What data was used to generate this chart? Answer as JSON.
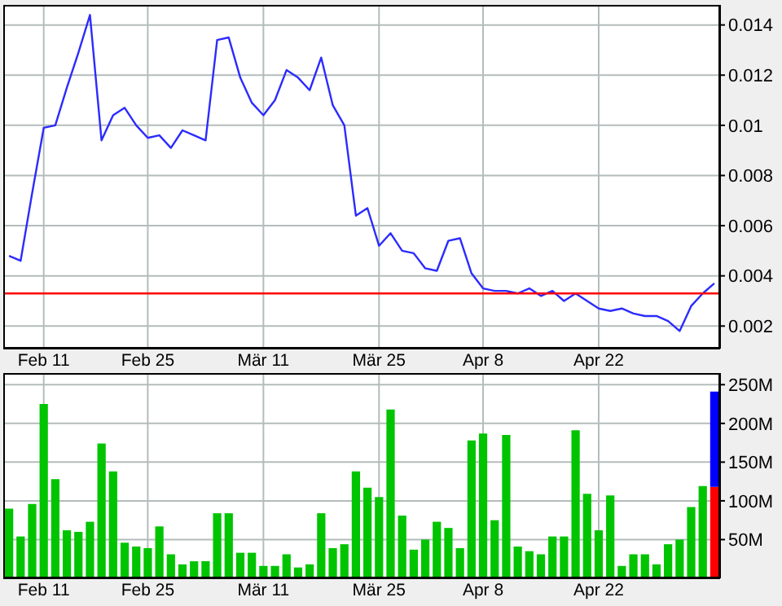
{
  "chart_data": [
    {
      "type": "line",
      "categories": [
        null,
        null,
        null,
        "Feb 11",
        null,
        null,
        null,
        null,
        null,
        null,
        null,
        null,
        "Feb 25",
        null,
        null,
        null,
        null,
        null,
        null,
        null,
        null,
        null,
        "Mär 11",
        null,
        null,
        null,
        null,
        null,
        null,
        null,
        null,
        null,
        "Mär 25",
        null,
        null,
        null,
        null,
        null,
        null,
        null,
        null,
        "Apr 8",
        null,
        null,
        null,
        null,
        null,
        null,
        null,
        null,
        null,
        "Apr 22",
        null,
        null,
        null,
        null,
        null,
        null,
        null,
        null,
        null,
        null
      ],
      "series": [
        {
          "color": "#2b2bff",
          "values": [
            0.0048,
            0.0046,
            0.0073,
            0.0099,
            0.01,
            0.0115,
            0.0129,
            0.0144,
            0.0094,
            0.0104,
            0.0107,
            0.01,
            0.0095,
            0.0096,
            0.0091,
            0.0098,
            0.0096,
            0.0094,
            0.0134,
            0.0135,
            0.0119,
            0.0109,
            0.0104,
            0.011,
            0.0122,
            0.0119,
            0.0114,
            0.0127,
            0.0108,
            0.01,
            0.0064,
            0.0067,
            0.0052,
            0.0057,
            0.005,
            0.0049,
            0.0043,
            0.0042,
            0.0054,
            0.0055,
            0.0041,
            0.0035,
            0.0034,
            0.0034,
            0.0033,
            0.0035,
            0.0032,
            0.0034,
            0.003,
            0.0033,
            0.003,
            0.0027,
            0.0026,
            0.0027,
            0.0025,
            0.0024,
            0.0024,
            0.0022,
            0.0018,
            0.0028,
            0.0033,
            0.0037
          ]
        }
      ],
      "ylim": [
        0.0011,
        0.0148
      ],
      "yticks": [
        0.002,
        0.004,
        0.006,
        0.008,
        0.01,
        0.012,
        0.014
      ],
      "grid": true,
      "marker": "none",
      "line_style": "solid",
      "ref_lines": [
        {
          "axis": "y",
          "value": 0.0033,
          "color": "#ff0000"
        }
      ]
    },
    {
      "type": "bar",
      "categories": [
        null,
        null,
        null,
        "Feb 11",
        null,
        null,
        null,
        null,
        null,
        null,
        null,
        null,
        "Feb 25",
        null,
        null,
        null,
        null,
        null,
        null,
        null,
        null,
        null,
        "Mär 11",
        null,
        null,
        null,
        null,
        null,
        null,
        null,
        null,
        null,
        "Mär 25",
        null,
        null,
        null,
        null,
        null,
        null,
        null,
        null,
        "Apr 8",
        null,
        null,
        null,
        null,
        null,
        null,
        null,
        null,
        null,
        "Apr 22",
        null,
        null,
        null,
        null,
        null,
        null,
        null,
        null,
        null,
        null
      ],
      "stacked": true,
      "series": [
        {
          "color": "#00c400",
          "values": [
            90,
            54,
            96,
            225,
            128,
            62,
            60,
            73,
            174,
            138,
            46,
            41,
            39,
            67,
            31,
            18,
            22,
            22,
            84,
            84,
            33,
            33,
            16,
            16,
            31,
            14,
            18,
            84,
            39,
            44,
            138,
            117,
            105,
            218,
            81,
            37,
            50,
            73,
            65,
            39,
            178,
            187,
            75,
            185,
            41,
            35,
            31,
            54,
            54,
            191,
            109,
            62,
            107,
            16,
            31,
            31,
            18,
            44,
            50,
            92,
            119,
            null
          ]
        },
        {
          "color": "#ff0000",
          "values": [
            null,
            null,
            null,
            null,
            null,
            null,
            null,
            null,
            null,
            null,
            null,
            null,
            null,
            null,
            null,
            null,
            null,
            null,
            null,
            null,
            null,
            null,
            null,
            null,
            null,
            null,
            null,
            null,
            null,
            null,
            null,
            null,
            null,
            null,
            null,
            null,
            null,
            null,
            null,
            null,
            null,
            null,
            null,
            null,
            null,
            null,
            null,
            null,
            null,
            null,
            null,
            null,
            null,
            null,
            null,
            null,
            null,
            null,
            null,
            null,
            null,
            118
          ]
        },
        {
          "color": "#0000ff",
          "values": [
            null,
            null,
            null,
            null,
            null,
            null,
            null,
            null,
            null,
            null,
            null,
            null,
            null,
            null,
            null,
            null,
            null,
            null,
            null,
            null,
            null,
            null,
            null,
            null,
            null,
            null,
            null,
            null,
            null,
            null,
            null,
            null,
            null,
            null,
            null,
            null,
            null,
            null,
            null,
            null,
            null,
            null,
            null,
            null,
            null,
            null,
            null,
            null,
            null,
            null,
            null,
            null,
            null,
            null,
            null,
            null,
            null,
            null,
            null,
            null,
            null,
            123
          ]
        }
      ],
      "ylim": [
        0,
        265
      ],
      "yticks": [
        {
          "value": 50,
          "label": "50M"
        },
        {
          "value": 100,
          "label": "100M"
        },
        {
          "value": 150,
          "label": "150M"
        },
        {
          "value": 200,
          "label": "200M"
        },
        {
          "value": 250,
          "label": "250M"
        }
      ],
      "grid": true
    }
  ]
}
